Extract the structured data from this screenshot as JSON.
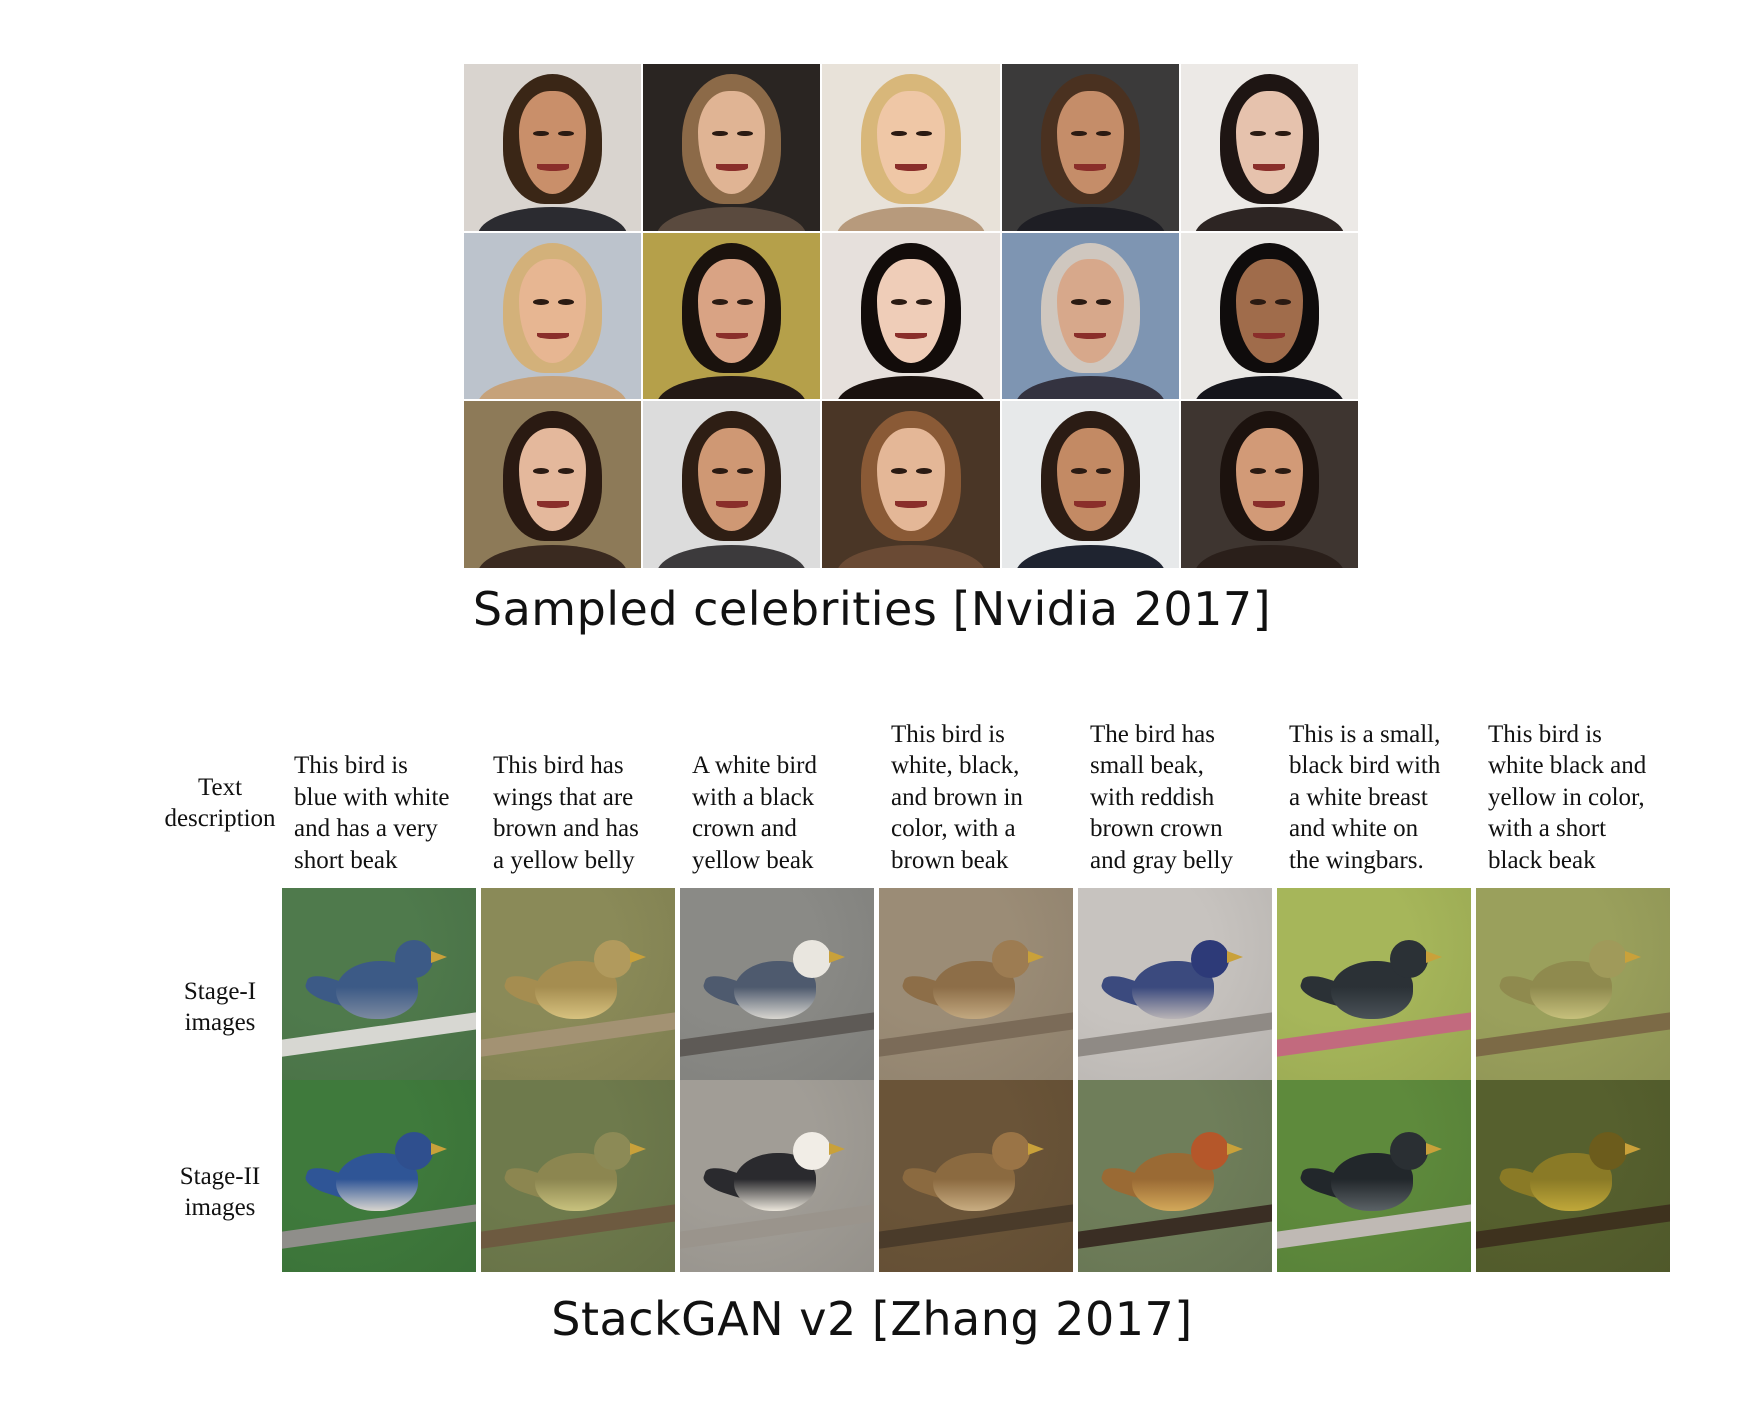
{
  "top_caption": "Sampled celebrities [Nvidia 2017]",
  "bottom_caption": "StackGAN v2 [Zhang 2017]",
  "celebrity_faces": [
    {
      "bg": "#d9d4cf",
      "hair": "#3a2616",
      "skin": "#c98f6a",
      "cloth": "#2b2b30"
    },
    {
      "bg": "#2a2522",
      "hair": "#8c6a48",
      "skin": "#e0b494",
      "cloth": "#5a4a3e"
    },
    {
      "bg": "#e8e2d9",
      "hair": "#d8b77a",
      "skin": "#efc7a6",
      "cloth": "#b79a7c"
    },
    {
      "bg": "#3b3a3a",
      "hair": "#4a3120",
      "skin": "#c58d69",
      "cloth": "#1e1e24"
    },
    {
      "bg": "#ece9e6",
      "hair": "#1e1513",
      "skin": "#e6c2ad",
      "cloth": "#2d2523"
    },
    {
      "bg": "#bcc3cc",
      "hair": "#d3b17a",
      "skin": "#e7b692",
      "cloth": "#c6a27a"
    },
    {
      "bg": "#b5a04a",
      "hair": "#1a120d",
      "skin": "#d9a384",
      "cloth": "#231915"
    },
    {
      "bg": "#e6e0dc",
      "hair": "#120c0a",
      "skin": "#efcdb8",
      "cloth": "#19110e"
    },
    {
      "bg": "#7e95b2",
      "hair": "#cfc7bf",
      "skin": "#d7a88b",
      "cloth": "#343340"
    },
    {
      "bg": "#e9e7e4",
      "hair": "#0f0c0c",
      "skin": "#a06c4b",
      "cloth": "#15151b"
    },
    {
      "bg": "#8d7a58",
      "hair": "#2a1a12",
      "skin": "#e4b89c",
      "cloth": "#3a2a20"
    },
    {
      "bg": "#dcdcdc",
      "hair": "#2e1e14",
      "skin": "#cf9874",
      "cloth": "#3c3a3c"
    },
    {
      "bg": "#4a3626",
      "hair": "#8a5a36",
      "skin": "#e4b797",
      "cloth": "#6a4a34"
    },
    {
      "bg": "#e7e9ea",
      "hair": "#2b1c14",
      "skin": "#c38a64",
      "cloth": "#1f2430"
    },
    {
      "bg": "#3e3530",
      "hair": "#1c120e",
      "skin": "#d29a77",
      "cloth": "#2a1f1a"
    }
  ],
  "stackgan": {
    "row_labels": {
      "text": "Text\ndescription",
      "stage1": "Stage-I\nimages",
      "stage2": "Stage-II\nimages"
    },
    "columns": [
      {
        "description": "This bird is\nblue with white\nand has a very\nshort beak",
        "stage1": {
          "bg": "#4f7a4c",
          "branch": "#d7d7d2",
          "body": "#3c5a86",
          "head": "#3c5a86",
          "belly": "#7c8aa0"
        },
        "stage2": {
          "bg": "#3f7a3c",
          "branch": "#8f8e8a",
          "body": "#2f5596",
          "head": "#2f4f8e",
          "belly": "#d8d5cf"
        }
      },
      {
        "description": "This bird has\nwings that are\nbrown and has\na yellow belly",
        "stage1": {
          "bg": "#8a8a58",
          "branch": "#a39273",
          "body": "#a58d50",
          "head": "#b19a5d",
          "belly": "#d7c27f"
        },
        "stage2": {
          "bg": "#6e7a4c",
          "branch": "#6d5a40",
          "body": "#8c8650",
          "head": "#8c8a56",
          "belly": "#c9c27e"
        }
      },
      {
        "description": "A white bird\nwith a black\ncrown and\nyellow beak",
        "stage1": {
          "bg": "#8a8a86",
          "branch": "#5e5a56",
          "body": "#4e5a6e",
          "head": "#e9e6df",
          "belly": "#d8d6d0"
        },
        "stage2": {
          "bg": "#a19d96",
          "branch": "#9a948c",
          "body": "#2a2a2e",
          "head": "#f1ede6",
          "belly": "#ece7dc"
        }
      },
      {
        "description": "This bird is\nwhite, black,\nand brown in\ncolor, with a\nbrown beak",
        "stage1": {
          "bg": "#9b8c76",
          "branch": "#7b6b58",
          "body": "#8d6e48",
          "head": "#9d7c52",
          "belly": "#c2a880"
        },
        "stage2": {
          "bg": "#6a5438",
          "branch": "#4a3b2a",
          "body": "#8b6a40",
          "head": "#9a7446",
          "belly": "#c9ad82"
        }
      },
      {
        "description": "The bird has\nsmall beak,\nwith reddish\nbrown crown\nand gray belly",
        "stage1": {
          "bg": "#c7c3bf",
          "branch": "#8f8a85",
          "body": "#3b4a7e",
          "head": "#2d3a78",
          "belly": "#b9b4b6"
        },
        "stage2": {
          "bg": "#6f7e5a",
          "branch": "#3a2e24",
          "body": "#9a6a34",
          "head": "#b5572a",
          "belly": "#d3a95a"
        }
      },
      {
        "description": "This is a small,\nblack bird with\na white breast\nand white on\nthe wingbars.",
        "stage1": {
          "bg": "#a6b65a",
          "branch": "#c26a7e",
          "body": "#2b3136",
          "head": "#2b3136",
          "belly": "#4a5258"
        },
        "stage2": {
          "bg": "#5e8a3c",
          "branch": "#bfb9b4",
          "body": "#22272b",
          "head": "#2a2f33",
          "belly": "#5b6266"
        }
      },
      {
        "description": "This bird is\nwhite black and\nyellow in color,\nwith a short\nblack beak",
        "stage1": {
          "bg": "#9aa05c",
          "branch": "#7c6a46",
          "body": "#8f8a4e",
          "head": "#a09a5a",
          "belly": "#c6c07c"
        },
        "stage2": {
          "bg": "#56602e",
          "branch": "#3e321e",
          "body": "#8a7a26",
          "head": "#6c5c1c",
          "belly": "#c0a83a"
        }
      }
    ]
  }
}
